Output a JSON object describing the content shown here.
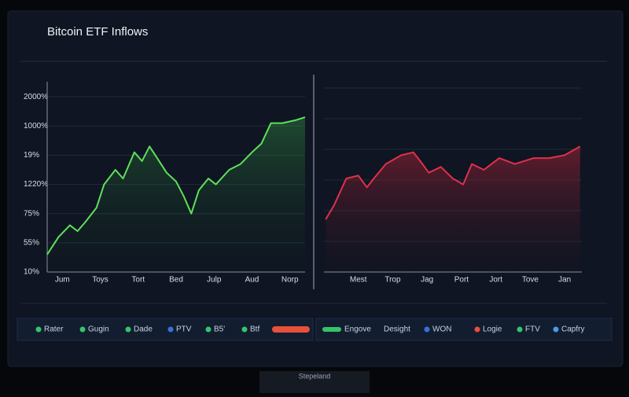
{
  "title": "Bitcoin ETF Inflows",
  "brand": "Stepeland",
  "legend": [
    {
      "label": "Rater",
      "color": "#35c46a"
    },
    {
      "label": "Gugin",
      "color": "#35c46a"
    },
    {
      "label": "Dade",
      "color": "#35c46a"
    },
    {
      "label": "PTV",
      "color": "#3a6fd8"
    },
    {
      "label": "B5'",
      "color": "#35c46a"
    },
    {
      "label": "Btf",
      "color": "#35c46a"
    },
    {
      "color": "#e8503a"
    },
    {
      "label": "Engove",
      "color": "#35c46a"
    },
    {
      "label": "Desight"
    },
    {
      "label": "WON",
      "color": "#3a6fd8"
    },
    {
      "label": "Logie",
      "color": "#e8503a"
    },
    {
      "label": "FTV",
      "color": "#35c46a"
    },
    {
      "label": "Capfry",
      "color": "#4a9be8"
    }
  ],
  "chart_data": [
    {
      "type": "line",
      "xlim": [
        -0.4,
        6.4
      ],
      "xticks": [
        {
          "value": 0,
          "label": "Jum"
        },
        {
          "value": 1,
          "label": "Toys"
        },
        {
          "value": 2,
          "label": "Tort"
        },
        {
          "value": 3,
          "label": "Bed"
        },
        {
          "value": 4,
          "label": "Julp"
        },
        {
          "value": 5,
          "label": "Aud"
        },
        {
          "value": 6,
          "label": "Norp"
        }
      ],
      "ylim": [
        0,
        6.3
      ],
      "yticks": [
        {
          "value": 0,
          "label": "10%"
        },
        {
          "value": 1,
          "label": "55%"
        },
        {
          "value": 2,
          "label": "75%"
        },
        {
          "value": 3,
          "label": "1220%"
        },
        {
          "value": 4,
          "label": "19%"
        },
        {
          "value": 5,
          "label": "1000%"
        },
        {
          "value": 6,
          "label": "2000%"
        }
      ],
      "grid": true,
      "series": [
        {
          "color": "#5ee05a",
          "x": [
            -0.4,
            -0.1,
            0.2,
            0.4,
            0.6,
            0.9,
            1.1,
            1.4,
            1.6,
            1.9,
            2.1,
            2.3,
            2.5,
            2.75,
            3.0,
            3.2,
            3.4,
            3.6,
            3.85,
            4.05,
            4.4,
            4.7,
            5.0,
            5.25,
            5.5,
            5.8,
            6.15,
            6.4
          ],
          "values": [
            0.6,
            1.2,
            1.6,
            1.4,
            1.7,
            2.2,
            3.0,
            3.5,
            3.2,
            4.1,
            3.8,
            4.3,
            3.9,
            3.4,
            3.1,
            2.6,
            2.0,
            2.8,
            3.2,
            3.0,
            3.5,
            3.7,
            4.1,
            4.4,
            5.1,
            5.1,
            5.2,
            5.3
          ]
        }
      ]
    },
    {
      "type": "line",
      "xlim": [
        -1,
        6.5
      ],
      "xticks": [
        {
          "value": 0,
          "label": "Mest"
        },
        {
          "value": 1,
          "label": "Trop"
        },
        {
          "value": 2,
          "label": "Jag"
        },
        {
          "value": 3,
          "label": "Port"
        },
        {
          "value": 4,
          "label": "Jort"
        },
        {
          "value": 5,
          "label": "Tove"
        },
        {
          "value": 6,
          "label": "Jan"
        }
      ],
      "ylim": [
        0,
        6.3
      ],
      "series": [
        {
          "color": "#e0304a",
          "x": [
            -0.95,
            -0.7,
            -0.35,
            0,
            0.25,
            0.45,
            0.8,
            1.25,
            1.6,
            1.8,
            2.05,
            2.4,
            2.75,
            3.05,
            3.3,
            3.65,
            4.1,
            4.55,
            5.1,
            5.55,
            6.0,
            6.45
          ],
          "values": [
            1.8,
            2.3,
            3.2,
            3.3,
            2.9,
            3.2,
            3.7,
            4.0,
            4.1,
            3.8,
            3.4,
            3.6,
            3.2,
            3.0,
            3.7,
            3.5,
            3.9,
            3.7,
            3.9,
            3.9,
            4.0,
            4.3
          ]
        }
      ]
    }
  ]
}
